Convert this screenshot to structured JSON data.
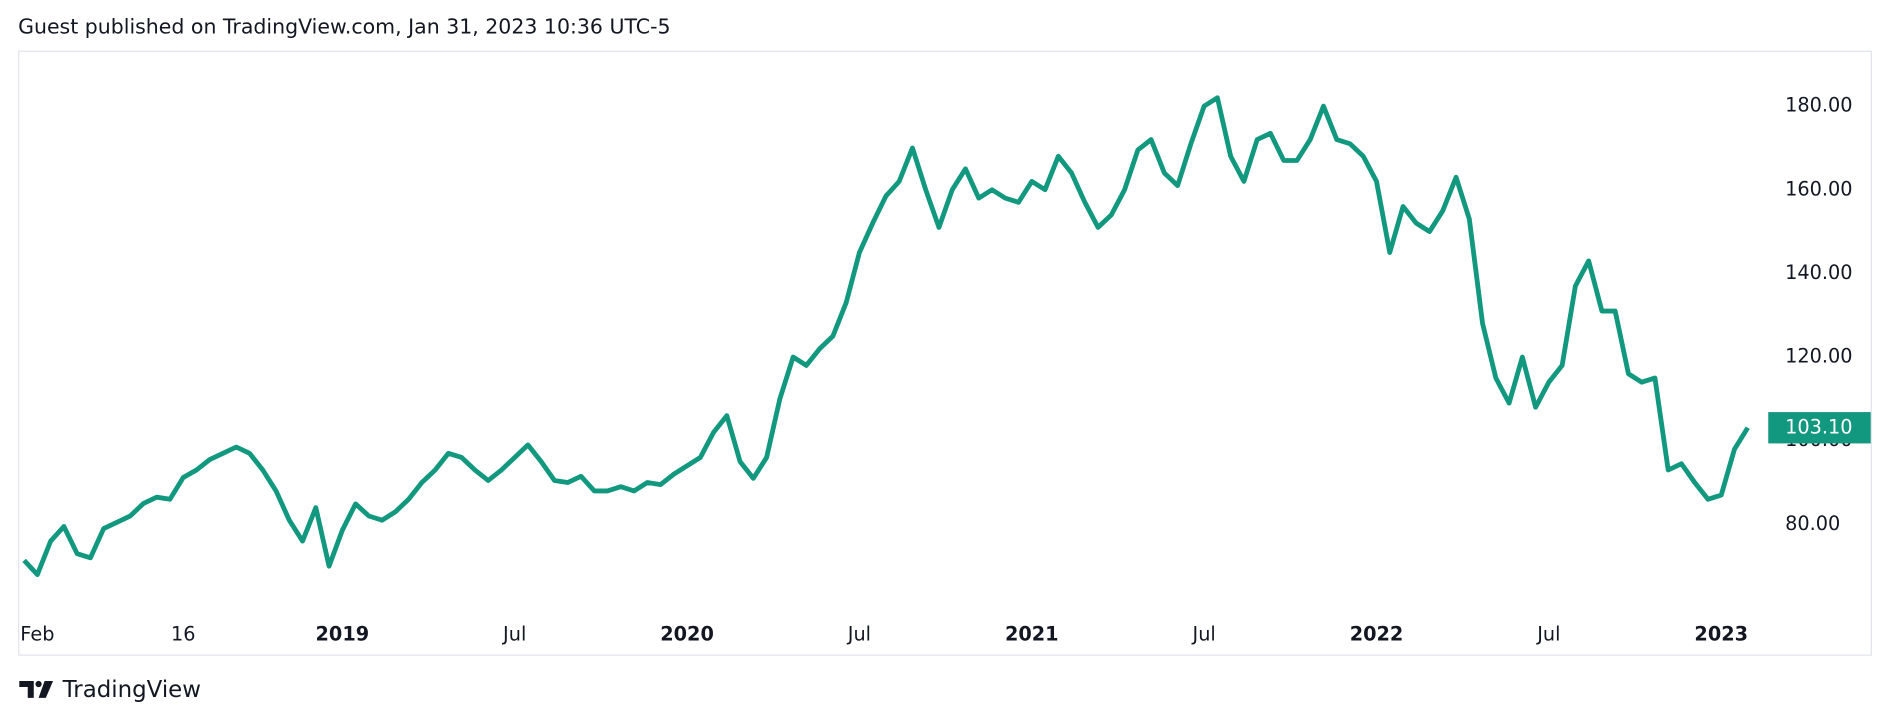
{
  "header": {
    "text": "Guest published on TradingView.com, Jan 31, 2023 10:36 UTC-5"
  },
  "footer": {
    "brand": "TradingView"
  },
  "chart_data": {
    "type": "line",
    "categories": [
      null,
      "Feb",
      null,
      null,
      null,
      null,
      null,
      null,
      null,
      null,
      null,
      null,
      "16",
      null,
      null,
      null,
      null,
      null,
      null,
      null,
      null,
      null,
      null,
      null,
      "2019",
      null,
      null,
      null,
      null,
      null,
      null,
      null,
      null,
      null,
      null,
      null,
      null,
      "Jul",
      null,
      null,
      null,
      null,
      null,
      null,
      null,
      null,
      null,
      null,
      null,
      null,
      "2020",
      null,
      null,
      null,
      null,
      null,
      null,
      null,
      null,
      null,
      null,
      null,
      null,
      "Jul",
      null,
      null,
      null,
      null,
      null,
      null,
      null,
      null,
      null,
      null,
      null,
      null,
      "2021",
      null,
      null,
      null,
      null,
      null,
      null,
      null,
      null,
      null,
      null,
      null,
      null,
      "Jul",
      null,
      null,
      null,
      null,
      null,
      null,
      null,
      null,
      null,
      null,
      null,
      null,
      "2022",
      null,
      null,
      null,
      null,
      null,
      null,
      null,
      null,
      null,
      null,
      null,
      null,
      "Jul",
      null,
      null,
      null,
      null,
      null,
      null,
      null,
      null,
      null,
      null,
      null,
      null,
      "2023",
      null,
      null
    ],
    "series": [
      {
        "color": "#12987f",
        "values": [
          71.4,
          68,
          76,
          79.5,
          73,
          72,
          79,
          80.5,
          82,
          85,
          86.5,
          86,
          91.2,
          93,
          95.5,
          97,
          98.5,
          97,
          93,
          88,
          81,
          76,
          84,
          70,
          78.6,
          84.9,
          82,
          81,
          83,
          86,
          90,
          93,
          97,
          96,
          93,
          90.5,
          93,
          96,
          99,
          95,
          90.5,
          90,
          91.5,
          88,
          88,
          89,
          88,
          90,
          89.5,
          92,
          94,
          96,
          102,
          106,
          95,
          91,
          96,
          110,
          120,
          118,
          122,
          125,
          133,
          145,
          152,
          158.5,
          162,
          170,
          160,
          151,
          160,
          165,
          158,
          160,
          158,
          157,
          162,
          160,
          168,
          164,
          157,
          151,
          154,
          160,
          169.5,
          172,
          164,
          161,
          171,
          180,
          182,
          168,
          162,
          172,
          173.5,
          167,
          167,
          172,
          180,
          172,
          171,
          168,
          162,
          145,
          156,
          152,
          150,
          155,
          163,
          153,
          128,
          115,
          109,
          120,
          108,
          114,
          118,
          137,
          143,
          131,
          131,
          116,
          114,
          115,
          93,
          94.5,
          90,
          86,
          87,
          98,
          103.1
        ]
      }
    ],
    "last_value": {
      "value": 103.1,
      "label": "103.10"
    },
    "ylim": [
      58.4,
      192.4
    ],
    "yticks": [
      {
        "value": 80,
        "label": "80.00"
      },
      {
        "value": 100,
        "label": "100.00"
      },
      {
        "value": 120,
        "label": "120.00"
      },
      {
        "value": 140,
        "label": "140.00"
      },
      {
        "value": 160,
        "label": "160.00"
      },
      {
        "value": 180,
        "label": "180.00"
      }
    ],
    "grid": false
  }
}
